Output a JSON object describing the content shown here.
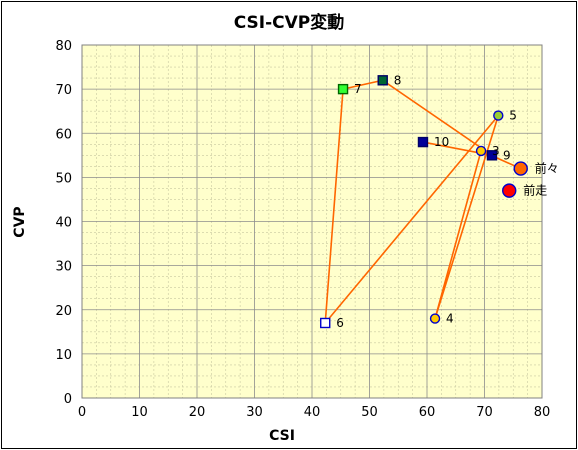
{
  "chart_data": {
    "type": "scatter",
    "title": "CSI-CVP変動",
    "xlabel": "CSI",
    "ylabel": "CVP",
    "xlim": [
      0,
      80
    ],
    "ylim": [
      0,
      80
    ],
    "x_ticks": [
      "0",
      "10",
      "20",
      "30",
      "40",
      "50",
      "60",
      "70",
      "80"
    ],
    "y_ticks": [
      "0",
      "10",
      "20",
      "30",
      "40",
      "50",
      "60",
      "70",
      "80"
    ],
    "grid": true,
    "plot_background": "#ffffcc",
    "line_color": "#ff6600",
    "points": [
      {
        "label": "10",
        "x": 59.3,
        "y": 58,
        "marker": "square",
        "fill": "#000099",
        "stroke": "#000066"
      },
      {
        "label": "9",
        "x": 71.3,
        "y": 55,
        "marker": "square",
        "fill": "#000099",
        "stroke": "#000066"
      },
      {
        "label": "8",
        "x": 52.3,
        "y": 72,
        "marker": "square",
        "fill": "#006633",
        "stroke": "#000066"
      },
      {
        "label": "7",
        "x": 45.4,
        "y": 70,
        "marker": "square",
        "fill": "#33ff33",
        "stroke": "#006600"
      },
      {
        "label": "6",
        "x": 42.3,
        "y": 17,
        "marker": "square",
        "fill": "#ffffff",
        "stroke": "#0000cc"
      },
      {
        "label": "5",
        "x": 72.4,
        "y": 64,
        "marker": "circle",
        "fill": "#99cc33",
        "stroke": "#0000cc"
      },
      {
        "label": "4",
        "x": 61.4,
        "y": 18,
        "marker": "circle",
        "fill": "#ffcc00",
        "stroke": "#0000cc"
      },
      {
        "label": "3",
        "x": 69.4,
        "y": 56,
        "marker": "circle",
        "fill": "#ffcc00",
        "stroke": "#0000cc"
      },
      {
        "label": "前々",
        "x": 76.3,
        "y": 52,
        "marker": "circle-lg",
        "fill": "#ff6600",
        "stroke": "#0000cc"
      },
      {
        "label": "前走",
        "x": 74.3,
        "y": 47,
        "marker": "circle-lg",
        "fill": "#ff0000",
        "stroke": "#0000cc"
      }
    ],
    "path_order": [
      "10",
      "9",
      "8",
      "7",
      "6",
      "5",
      "4",
      "3",
      "前々"
    ]
  }
}
